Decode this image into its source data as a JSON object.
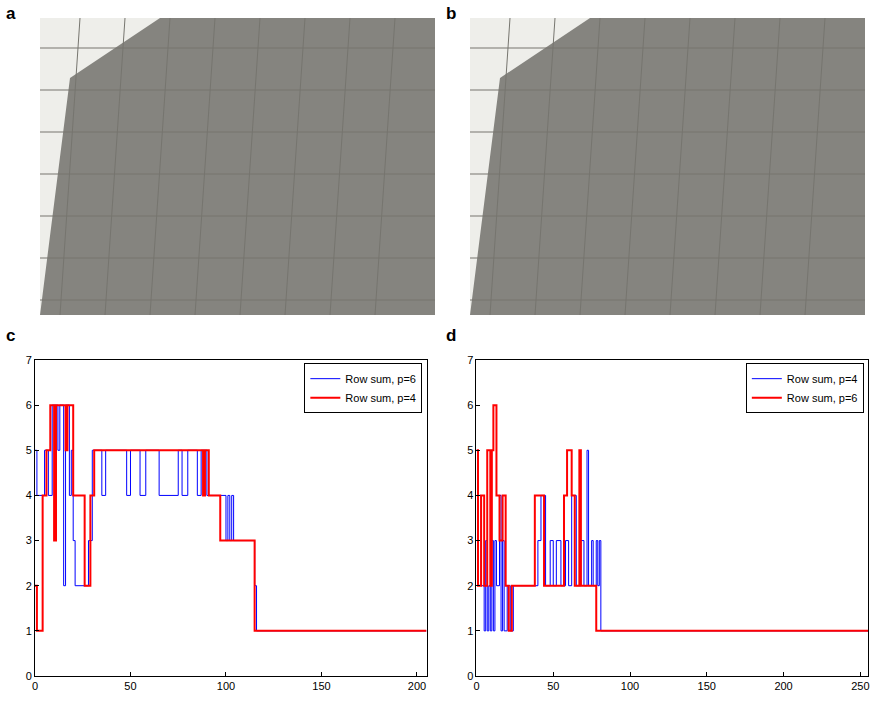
{
  "photos": [
    {
      "panel": "a"
    },
    {
      "panel": "b"
    }
  ],
  "chart_data": [
    {
      "panel": "c",
      "type": "line",
      "xlim": [
        0,
        205
      ],
      "xticks": [
        0,
        50,
        100,
        150,
        200
      ],
      "ylim": [
        0,
        7
      ],
      "yticks": [
        0,
        1,
        2,
        3,
        4,
        5,
        6,
        7
      ],
      "grid": false,
      "legend": "upper right",
      "series": [
        {
          "name": "Row sum, p=6",
          "color": "#0000ff",
          "line_style": "step",
          "x": [
            0,
            1,
            5,
            7,
            9,
            12,
            13,
            15,
            16,
            18,
            19,
            20,
            21,
            28,
            30,
            35,
            37,
            48,
            50,
            55,
            58,
            65,
            75,
            77,
            80,
            85,
            87,
            90,
            100,
            101,
            102,
            103,
            104,
            115,
            116,
            205
          ],
          "values": [
            5,
            4,
            5,
            4,
            6,
            5,
            6,
            2,
            6,
            4,
            5,
            3,
            2,
            3,
            5,
            4,
            5,
            4,
            5,
            4,
            5,
            4,
            5,
            4,
            5,
            4,
            5,
            4,
            3,
            4,
            3,
            4,
            3,
            2,
            1,
            1
          ]
        },
        {
          "name": "Row sum, p=4",
          "color": "#ff0000",
          "line_style": "step",
          "x": [
            0,
            1,
            4,
            6,
            8,
            10,
            11,
            16,
            17,
            20,
            26,
            29,
            31,
            88,
            89,
            91,
            97,
            115,
            205
          ],
          "values": [
            2,
            1,
            4,
            5,
            6,
            3,
            6,
            5,
            6,
            4,
            2,
            4,
            5,
            4,
            5,
            4,
            3,
            1,
            1
          ]
        }
      ]
    },
    {
      "panel": "d",
      "type": "line",
      "xlim": [
        0,
        255
      ],
      "xticks": [
        0,
        50,
        100,
        150,
        200,
        250
      ],
      "ylim": [
        0,
        7
      ],
      "yticks": [
        0,
        1,
        2,
        3,
        4,
        5,
        6,
        7
      ],
      "grid": false,
      "legend": "upper right",
      "series": [
        {
          "name": "Row sum, p=4",
          "color": "#0000ff",
          "line_style": "step",
          "x": [
            0,
            1,
            3,
            5,
            6,
            7,
            8,
            9,
            10,
            11,
            12,
            13,
            15,
            16,
            17,
            18,
            20,
            22,
            24,
            40,
            42,
            45,
            48,
            50,
            52,
            55,
            58,
            60,
            62,
            65,
            68,
            70,
            72,
            73,
            75,
            76,
            78,
            79,
            80,
            81,
            255
          ],
          "values": [
            5,
            4,
            2,
            1,
            3,
            1,
            2,
            1,
            3,
            1,
            3,
            2,
            4,
            1,
            3,
            1,
            2,
            1,
            2,
            3,
            4,
            2,
            3,
            2,
            3,
            2,
            3,
            2,
            4,
            2,
            3,
            2,
            5,
            2,
            3,
            2,
            3,
            2,
            3,
            1,
            1
          ]
        },
        {
          "name": "Row sum, p=6",
          "color": "#ff0000",
          "line_style": "step",
          "x": [
            0,
            1,
            3,
            5,
            7,
            9,
            10,
            11,
            13,
            15,
            17,
            19,
            21,
            23,
            38,
            44,
            57,
            59,
            62,
            64,
            67,
            68,
            78,
            255
          ],
          "values": [
            5,
            2,
            4,
            2,
            5,
            2,
            5,
            6,
            4,
            3,
            4,
            2,
            1,
            2,
            4,
            2,
            4,
            5,
            4,
            2,
            5,
            2,
            1,
            1
          ]
        }
      ]
    }
  ]
}
